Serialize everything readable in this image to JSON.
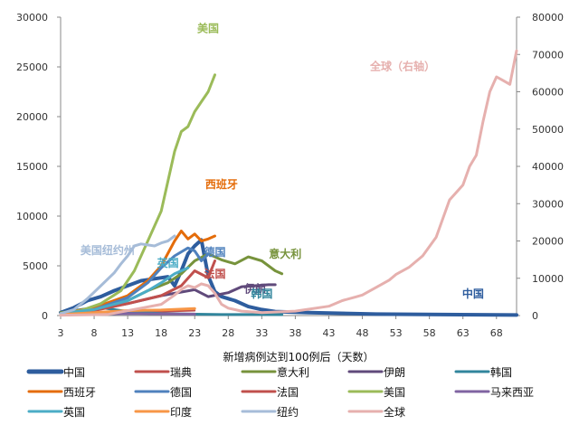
{
  "chart_data": {
    "type": "line",
    "title": "",
    "xlabel": "新增病例达到100例后（天数）",
    "ylabel_left": "",
    "ylabel_right": "",
    "x_ticks": [
      3,
      8,
      13,
      18,
      23,
      28,
      33,
      38,
      43,
      48,
      53,
      58,
      63,
      68
    ],
    "xlim": [
      3,
      71
    ],
    "ylim_left": [
      0,
      30000
    ],
    "ylim_right": [
      0,
      80000
    ],
    "y_ticks_left": [
      0,
      5000,
      10000,
      15000,
      20000,
      25000,
      30000
    ],
    "y_ticks_right": [
      0,
      10000,
      20000,
      30000,
      40000,
      50000,
      60000,
      70000,
      80000
    ],
    "series": [
      {
        "name": "中国",
        "color": "#2E5D9E",
        "width": 4,
        "axis": "left",
        "x": [
          3,
          5,
          7,
          9,
          11,
          13,
          15,
          17,
          19,
          20,
          21,
          22,
          23,
          24,
          25,
          26,
          27,
          29,
          31,
          33,
          35,
          40,
          50,
          60,
          71
        ],
        "y": [
          300,
          800,
          1500,
          1900,
          2500,
          3000,
          3500,
          3700,
          3900,
          3000,
          4500,
          6200,
          7000,
          7600,
          4000,
          2400,
          1900,
          1500,
          900,
          600,
          400,
          300,
          150,
          100,
          50
        ]
      },
      {
        "name": "瑞典",
        "color": "#C0504D",
        "width": 2,
        "axis": "left",
        "x": [
          3,
          8,
          13,
          18,
          23
        ],
        "y": [
          100,
          200,
          300,
          400,
          500
        ]
      },
      {
        "name": "意大利",
        "color": "#77933C",
        "width": 3,
        "axis": "left",
        "x": [
          3,
          8,
          13,
          16,
          19,
          21,
          23,
          25,
          27,
          29,
          31,
          33,
          35,
          36
        ],
        "y": [
          300,
          700,
          1500,
          2500,
          3300,
          4200,
          5500,
          6200,
          5600,
          5200,
          5900,
          5500,
          4500,
          4200
        ]
      },
      {
        "name": "伊朗",
        "color": "#604A7B",
        "width": 3,
        "axis": "left",
        "x": [
          3,
          8,
          13,
          18,
          23,
          25,
          28,
          30,
          32,
          34,
          35
        ],
        "y": [
          200,
          600,
          1200,
          2000,
          2600,
          1900,
          2300,
          2900,
          3000,
          3100,
          3100
        ]
      },
      {
        "name": "韩国",
        "color": "#31859C",
        "width": 3,
        "axis": "left",
        "x": [
          3,
          5,
          7,
          9,
          11,
          13,
          15,
          18,
          22,
          27,
          32,
          36
        ],
        "y": [
          200,
          500,
          700,
          800,
          600,
          400,
          300,
          200,
          150,
          100,
          100,
          90
        ]
      },
      {
        "name": "西班牙",
        "color": "#E46C0A",
        "width": 3,
        "axis": "left",
        "x": [
          3,
          8,
          13,
          16,
          18,
          20,
          21,
          22,
          23,
          24,
          25,
          26
        ],
        "y": [
          200,
          800,
          2000,
          3500,
          5000,
          7500,
          8500,
          7700,
          8200,
          7500,
          7700,
          8000
        ]
      },
      {
        "name": "德国",
        "color": "#4F81BD",
        "width": 3,
        "axis": "left",
        "x": [
          3,
          8,
          13,
          16,
          18,
          20,
          22,
          23,
          24,
          25
        ],
        "y": [
          200,
          600,
          1800,
          3300,
          4800,
          6000,
          6800,
          6500,
          5500,
          6200
        ]
      },
      {
        "name": "法国",
        "color": "#C0504D",
        "width": 3,
        "axis": "left",
        "x": [
          3,
          8,
          13,
          18,
          21,
          23,
          25,
          26
        ],
        "y": [
          200,
          500,
          1200,
          2000,
          3000,
          4500,
          3800,
          5500
        ]
      },
      {
        "name": "美国",
        "color": "#9BBB59",
        "width": 3,
        "axis": "left",
        "x": [
          3,
          6,
          9,
          12,
          14,
          16,
          18,
          19,
          20,
          21,
          22,
          23,
          24,
          25,
          26
        ],
        "y": [
          200,
          500,
          1200,
          2500,
          4500,
          7500,
          10500,
          13500,
          16500,
          18500,
          19000,
          20500,
          21500,
          22500,
          24200
        ]
      },
      {
        "name": "马来西亚",
        "color": "#8064A2",
        "width": 3,
        "axis": "left",
        "x": [
          3,
          8,
          13,
          18,
          23
        ],
        "y": [
          100,
          150,
          200,
          170,
          150
        ]
      },
      {
        "name": "英国",
        "color": "#4BACC6",
        "width": 3,
        "axis": "left",
        "x": [
          3,
          8,
          13,
          16,
          18,
          20,
          22
        ],
        "y": [
          200,
          600,
          1500,
          2500,
          3300,
          4200,
          4800
        ]
      },
      {
        "name": "印度",
        "color": "#F79646",
        "width": 3,
        "axis": "left",
        "x": [
          3,
          8,
          13,
          18,
          23
        ],
        "y": [
          100,
          300,
          500,
          550,
          700
        ]
      },
      {
        "name": "纽约",
        "color": "#A6BCD8",
        "width": 3,
        "axis": "left",
        "x": [
          3,
          5,
          7,
          9,
          11,
          12,
          13,
          14,
          15,
          16,
          17,
          18,
          19,
          20
        ],
        "y": [
          200,
          600,
          1700,
          3000,
          4300,
          5200,
          6000,
          7000,
          7200,
          7100,
          7000,
          7300,
          7500,
          8000
        ]
      },
      {
        "name": "全球",
        "color": "#E6B0AE",
        "width": 3,
        "axis": "right",
        "x": [
          3,
          10,
          15,
          18,
          20,
          21,
          22,
          23,
          24,
          25,
          26,
          27,
          28,
          30,
          33,
          38,
          43,
          45,
          47,
          48,
          50,
          52,
          53,
          55,
          57,
          59,
          60,
          61,
          63,
          64,
          65,
          66,
          67,
          68,
          69,
          70,
          71
        ],
        "y": [
          100,
          300,
          2000,
          3000,
          5500,
          7000,
          8000,
          7500,
          8500,
          8000,
          6000,
          3000,
          2000,
          1200,
          800,
          1200,
          2500,
          4000,
          5000,
          5500,
          7500,
          9500,
          11000,
          13000,
          16000,
          21000,
          26000,
          31000,
          35000,
          40000,
          43000,
          52000,
          60000,
          64000,
          63000,
          62000,
          71000
        ]
      }
    ],
    "annotations": [
      {
        "text": "美国",
        "color": "#9BBB59",
        "x": 25,
        "y": 28500
      },
      {
        "text": "西班牙",
        "color": "#E46C0A",
        "x": 27,
        "y": 12800
      },
      {
        "text": "美国纽约州",
        "color": "#A6BCD8",
        "x": 10,
        "y": 6200
      },
      {
        "text": "德国",
        "color": "#4F81BD",
        "x": 26,
        "y": 6000
      },
      {
        "text": "意大利",
        "color": "#77933C",
        "x": 36.5,
        "y": 5800
      },
      {
        "text": "英国",
        "color": "#4BACC6",
        "x": 19,
        "y": 4900
      },
      {
        "text": "法国",
        "color": "#C0504D",
        "x": 26,
        "y": 3800
      },
      {
        "text": "伊朗",
        "color": "#604A7B",
        "x": 32,
        "y": 2300
      },
      {
        "text": "韩国",
        "color": "#31859C",
        "x": 33,
        "y": 1800
      },
      {
        "text": "中国",
        "color": "#2E5D9E",
        "x": 64.5,
        "y": 1800
      },
      {
        "text": "全球（右轴）",
        "color": "#E6B0AE",
        "x": 54,
        "y": 24700
      }
    ],
    "legend_position": "bottom"
  }
}
